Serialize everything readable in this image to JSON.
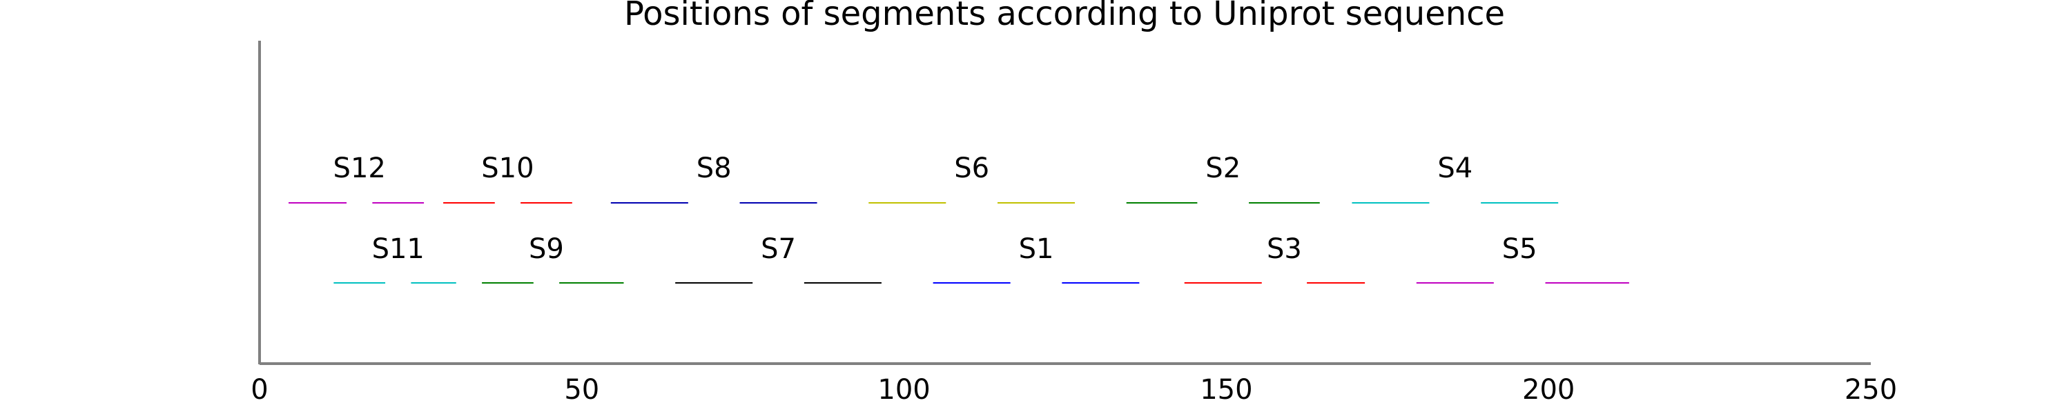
{
  "chart_data": {
    "type": "bar",
    "title": "Positions of segments according to Uniprot sequence",
    "xlabel": "",
    "ylabel": "",
    "xlim": [
      0,
      250
    ],
    "x_ticks": [
      {
        "value": 0,
        "label": "0"
      },
      {
        "value": 50,
        "label": "50"
      },
      {
        "value": 100,
        "label": "100"
      },
      {
        "value": 150,
        "label": "150"
      },
      {
        "value": 200,
        "label": "200"
      },
      {
        "value": 250,
        "label": "250"
      }
    ],
    "grid": false,
    "rows": [
      "upper",
      "lower"
    ],
    "segments": [
      {
        "name": "S12",
        "row": "upper",
        "color": "#c000c0",
        "ranges": [
          [
            4.5,
            13.5
          ],
          [
            17.5,
            25.5
          ]
        ]
      },
      {
        "name": "S10",
        "row": "upper",
        "color": "#ff0000",
        "ranges": [
          [
            28.5,
            36.5
          ],
          [
            40.5,
            48.5
          ]
        ]
      },
      {
        "name": "S8",
        "row": "upper",
        "color": "#0000b0",
        "ranges": [
          [
            54.5,
            66.5
          ],
          [
            74.5,
            86.5
          ]
        ]
      },
      {
        "name": "S6",
        "row": "upper",
        "color": "#c0c000",
        "ranges": [
          [
            94.5,
            106.5
          ],
          [
            114.5,
            126.5
          ]
        ]
      },
      {
        "name": "S2",
        "row": "upper",
        "color": "#008000",
        "ranges": [
          [
            134.5,
            145.5
          ],
          [
            153.5,
            164.5
          ]
        ]
      },
      {
        "name": "S4",
        "row": "upper",
        "color": "#00c0c0",
        "ranges": [
          [
            169.5,
            181.5
          ],
          [
            189.5,
            201.5
          ]
        ]
      },
      {
        "name": "S11",
        "row": "lower",
        "color": "#00c0c0",
        "ranges": [
          [
            11.5,
            19.5
          ],
          [
            23.5,
            30.5
          ]
        ]
      },
      {
        "name": "S9",
        "row": "lower",
        "color": "#008000",
        "ranges": [
          [
            34.5,
            42.5
          ],
          [
            46.5,
            56.5
          ]
        ]
      },
      {
        "name": "S7",
        "row": "lower",
        "color": "#000000",
        "ranges": [
          [
            64.5,
            76.5
          ],
          [
            84.5,
            96.5
          ]
        ]
      },
      {
        "name": "S1",
        "row": "lower",
        "color": "#0000ff",
        "ranges": [
          [
            104.5,
            116.5
          ],
          [
            124.5,
            136.5
          ]
        ]
      },
      {
        "name": "S3",
        "row": "lower",
        "color": "#ff0000",
        "ranges": [
          [
            143.5,
            155.5
          ],
          [
            162.5,
            171.5
          ]
        ]
      },
      {
        "name": "S5",
        "row": "lower",
        "color": "#c000c0",
        "ranges": [
          [
            179.5,
            191.5
          ],
          [
            199.5,
            212.5
          ]
        ]
      }
    ]
  }
}
